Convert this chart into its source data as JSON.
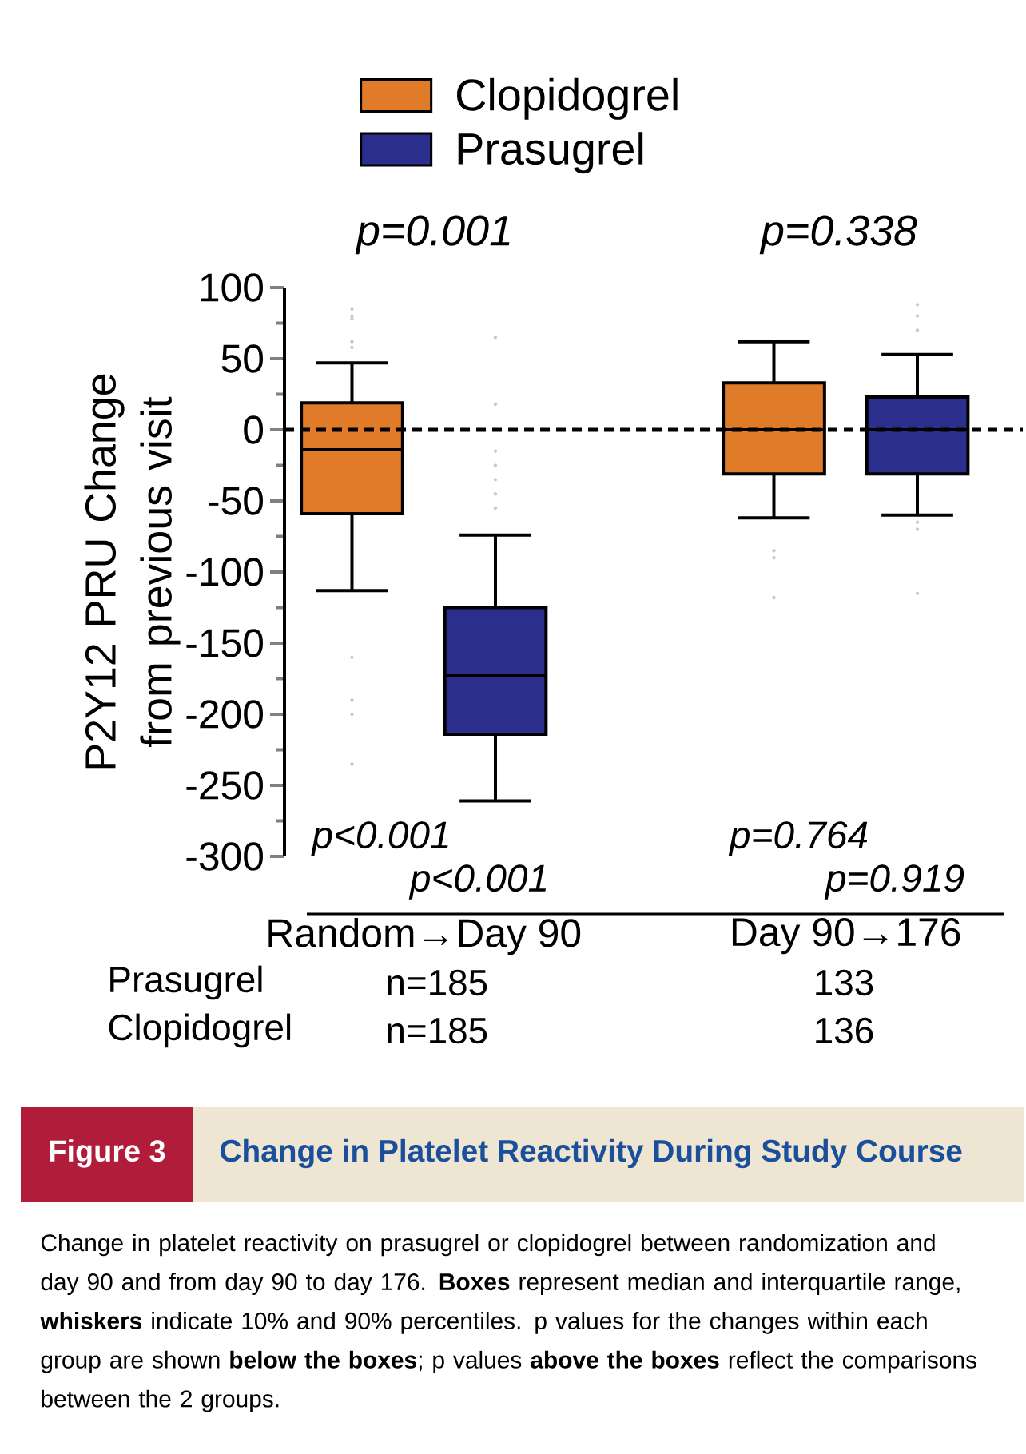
{
  "chart_data": {
    "type": "box",
    "title": "Change in Platelet Reactivity During Study Course",
    "ylabel": "P2Y12 PRU Change from previous visit",
    "categories": [
      "Random→Day 90",
      "Day 90→176"
    ],
    "series": [
      {
        "name": "Clopidogrel",
        "color": "#e07b2a",
        "boxes": [
          {
            "low": -113,
            "q1": -59,
            "median": -14,
            "q3": 19,
            "high": 47,
            "outliers": [
              85,
              80,
              78,
              62,
              58,
              -160,
              -190,
              -200,
              -235
            ]
          },
          {
            "low": -62,
            "q1": -31,
            "median": 0,
            "q3": 33,
            "high": 62,
            "outliers": [
              -85,
              -90,
              -118
            ]
          }
        ]
      },
      {
        "name": "Prasugrel",
        "color": "#2b2e8c",
        "boxes": [
          {
            "low": -261,
            "q1": -214,
            "median": -173,
            "q3": -125,
            "high": -74,
            "outliers": [
              65,
              18,
              -15,
              -25,
              -35,
              -45,
              -55
            ]
          },
          {
            "low": -60,
            "q1": -31,
            "median": 0,
            "q3": 23,
            "high": 53,
            "outliers": [
              88,
              80,
              70,
              -65,
              -70,
              -115
            ]
          }
        ]
      }
    ],
    "ylim": [
      -300,
      100
    ],
    "yticks": [
      -300,
      -250,
      -200,
      -150,
      -100,
      -50,
      0,
      50,
      100
    ],
    "ref_lines": [
      {
        "axis": "y",
        "value": 0,
        "line_style": "dashed"
      }
    ],
    "legend": "top",
    "annotations": [
      "p=0.001",
      "p=0.338",
      "p<0.001",
      "p<0.001",
      "p=0.764",
      "p=0.919",
      "Prasugrel",
      "n=185",
      "133",
      "Clopidogrel",
      "n=185",
      "136",
      "Figure 3",
      "Change in platelet reactivity on prasugrel or clopidogrel between randomization and day 90 and from day 90 to day 176. **Boxes** represent median and interquartile range, **whiskers** indicate 10% and 90% percentiles. p values for the changes within each group are shown **below the boxes**; p values **above the boxes** reflect the comparisons between the 2 groups."
    ]
  }
}
